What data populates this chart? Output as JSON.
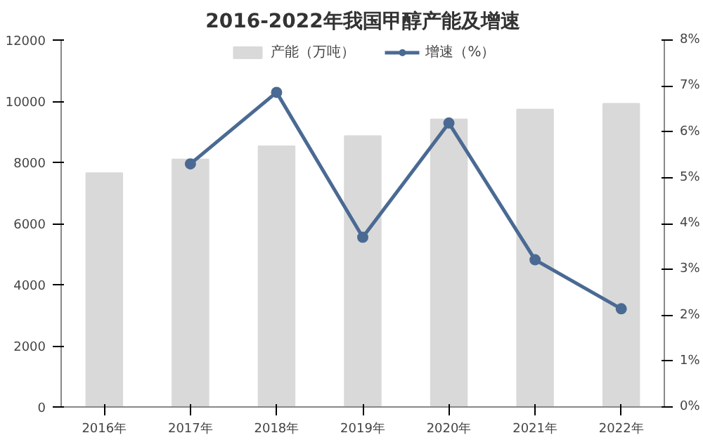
{
  "chart_data": {
    "type": "bar",
    "title": "2016-2022年我国甲醇产能及增速",
    "categories": [
      "2016年",
      "2017年",
      "2018年",
      "2019年",
      "2020年",
      "2021年",
      "2022年"
    ],
    "series": [
      {
        "name": "产能（万吨）",
        "color": "#d9d9d9",
        "values": [
          7650,
          8100,
          8530,
          8860,
          9410,
          9730,
          9920
        ]
      },
      {
        "name": "增速（%）",
        "type": "line",
        "axis": "y2",
        "color": "#4a6a93",
        "marker": "circle",
        "values": [
          null,
          5.3,
          6.86,
          3.7,
          6.19,
          3.21,
          2.14
        ]
      }
    ],
    "ylim": [
      0,
      12000
    ],
    "yticks": [
      0,
      2000,
      4000,
      6000,
      8000,
      10000,
      12000
    ],
    "y2lim": [
      0,
      8
    ],
    "y2ticks": [
      {
        "value": 0,
        "label": "0%"
      },
      {
        "value": 1,
        "label": "1%"
      },
      {
        "value": 2,
        "label": "2%"
      },
      {
        "value": 3,
        "label": "3%"
      },
      {
        "value": 4,
        "label": "4%"
      },
      {
        "value": 5,
        "label": "5%"
      },
      {
        "value": 6,
        "label": "6%"
      },
      {
        "value": 7,
        "label": "7%"
      },
      {
        "value": 8,
        "label": "8%"
      }
    ],
    "legend": "top",
    "grid": false
  }
}
